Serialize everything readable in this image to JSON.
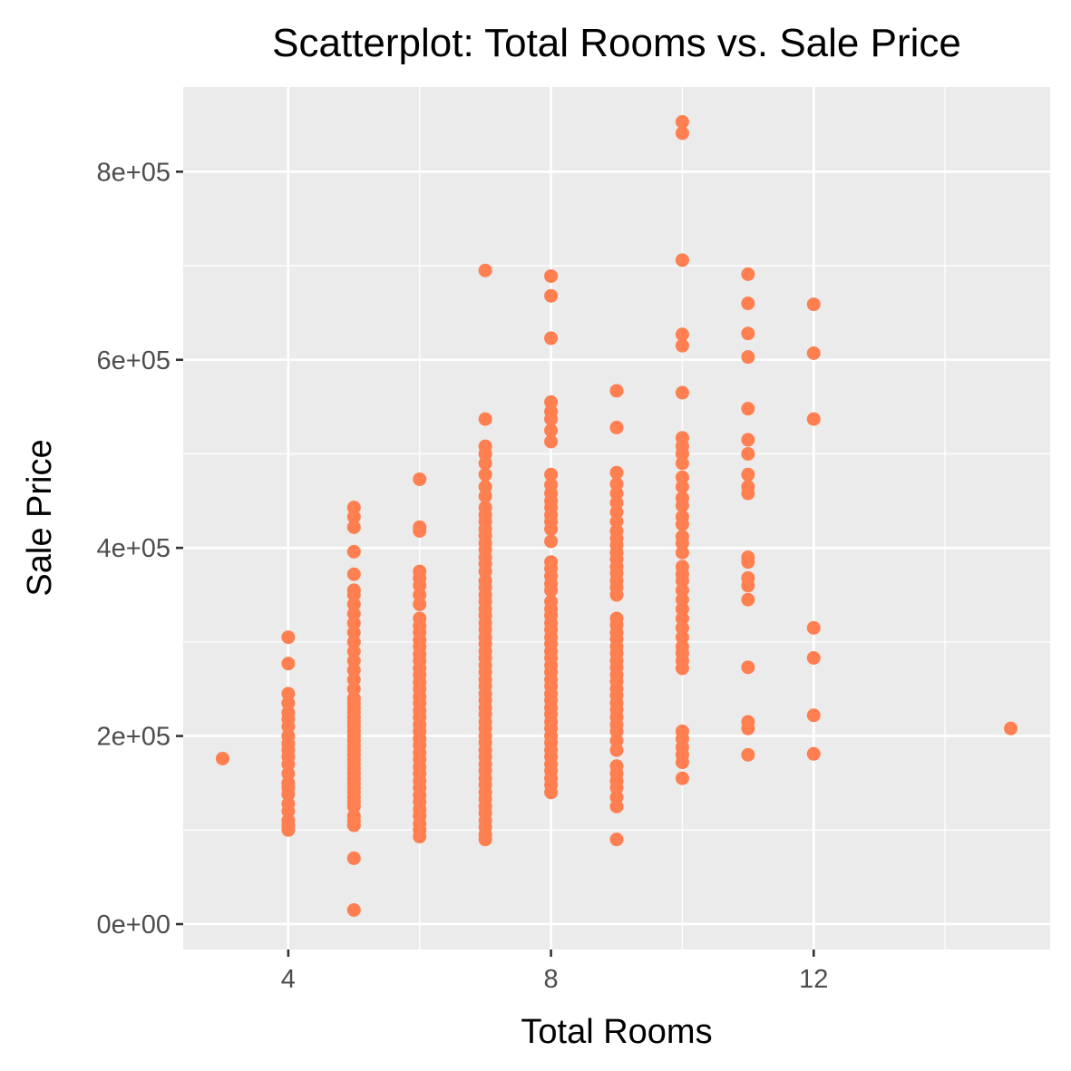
{
  "chart_data": {
    "type": "scatter",
    "title": "Scatterplot: Total Rooms vs. Sale Price",
    "xlabel": "Total Rooms",
    "ylabel": "Sale Price",
    "xlim": [
      2.4,
      15.6
    ],
    "ylim": [
      -27000,
      890000
    ],
    "x_ticks": [
      4,
      8,
      12
    ],
    "x_tick_labels": [
      "4",
      "8",
      "12"
    ],
    "y_ticks": [
      0,
      200000,
      400000,
      600000,
      800000
    ],
    "y_tick_labels": [
      "0e+00",
      "2e+05",
      "4e+05",
      "6e+05",
      "8e+05"
    ],
    "grid": true,
    "panel_background": "#ebebeb",
    "point_color": "#ff7f50",
    "series": [
      {
        "points": [
          [
            3,
            176000
          ],
          [
            4,
            100000
          ],
          [
            4,
            105000
          ],
          [
            4,
            110000
          ],
          [
            4,
            120000
          ],
          [
            4,
            128000
          ],
          [
            4,
            138000
          ],
          [
            4,
            145000
          ],
          [
            4,
            150000
          ],
          [
            4,
            160000
          ],
          [
            4,
            170000
          ],
          [
            4,
            178000
          ],
          [
            4,
            185000
          ],
          [
            4,
            192000
          ],
          [
            4,
            200000
          ],
          [
            4,
            210000
          ],
          [
            4,
            218000
          ],
          [
            4,
            225000
          ],
          [
            4,
            235000
          ],
          [
            4,
            245000
          ],
          [
            4,
            277000
          ],
          [
            4,
            305000
          ],
          [
            5,
            15000
          ],
          [
            5,
            70000
          ],
          [
            5,
            105000
          ],
          [
            5,
            110000
          ],
          [
            5,
            115000
          ],
          [
            5,
            125000
          ],
          [
            5,
            130000
          ],
          [
            5,
            135000
          ],
          [
            5,
            140000
          ],
          [
            5,
            145000
          ],
          [
            5,
            150000
          ],
          [
            5,
            155000
          ],
          [
            5,
            160000
          ],
          [
            5,
            165000
          ],
          [
            5,
            170000
          ],
          [
            5,
            175000
          ],
          [
            5,
            180000
          ],
          [
            5,
            185000
          ],
          [
            5,
            190000
          ],
          [
            5,
            195000
          ],
          [
            5,
            200000
          ],
          [
            5,
            205000
          ],
          [
            5,
            210000
          ],
          [
            5,
            215000
          ],
          [
            5,
            220000
          ],
          [
            5,
            225000
          ],
          [
            5,
            230000
          ],
          [
            5,
            235000
          ],
          [
            5,
            240000
          ],
          [
            5,
            250000
          ],
          [
            5,
            260000
          ],
          [
            5,
            270000
          ],
          [
            5,
            280000
          ],
          [
            5,
            290000
          ],
          [
            5,
            300000
          ],
          [
            5,
            310000
          ],
          [
            5,
            320000
          ],
          [
            5,
            330000
          ],
          [
            5,
            340000
          ],
          [
            5,
            350000
          ],
          [
            5,
            355000
          ],
          [
            5,
            372000
          ],
          [
            5,
            396000
          ],
          [
            5,
            422000
          ],
          [
            5,
            433000
          ],
          [
            5,
            443000
          ],
          [
            6,
            93000
          ],
          [
            6,
            100000
          ],
          [
            6,
            107000
          ],
          [
            6,
            115000
          ],
          [
            6,
            122000
          ],
          [
            6,
            130000
          ],
          [
            6,
            137000
          ],
          [
            6,
            145000
          ],
          [
            6,
            152000
          ],
          [
            6,
            160000
          ],
          [
            6,
            167000
          ],
          [
            6,
            175000
          ],
          [
            6,
            182000
          ],
          [
            6,
            190000
          ],
          [
            6,
            197000
          ],
          [
            6,
            205000
          ],
          [
            6,
            212000
          ],
          [
            6,
            220000
          ],
          [
            6,
            227000
          ],
          [
            6,
            235000
          ],
          [
            6,
            242000
          ],
          [
            6,
            250000
          ],
          [
            6,
            257000
          ],
          [
            6,
            265000
          ],
          [
            6,
            272000
          ],
          [
            6,
            280000
          ],
          [
            6,
            287000
          ],
          [
            6,
            295000
          ],
          [
            6,
            302000
          ],
          [
            6,
            310000
          ],
          [
            6,
            317000
          ],
          [
            6,
            325000
          ],
          [
            6,
            340000
          ],
          [
            6,
            350000
          ],
          [
            6,
            360000
          ],
          [
            6,
            368000
          ],
          [
            6,
            375000
          ],
          [
            6,
            418000
          ],
          [
            6,
            422000
          ],
          [
            6,
            473000
          ],
          [
            7,
            90000
          ],
          [
            7,
            95000
          ],
          [
            7,
            103000
          ],
          [
            7,
            110000
          ],
          [
            7,
            118000
          ],
          [
            7,
            125000
          ],
          [
            7,
            133000
          ],
          [
            7,
            140000
          ],
          [
            7,
            148000
          ],
          [
            7,
            155000
          ],
          [
            7,
            163000
          ],
          [
            7,
            170000
          ],
          [
            7,
            178000
          ],
          [
            7,
            185000
          ],
          [
            7,
            193000
          ],
          [
            7,
            200000
          ],
          [
            7,
            208000
          ],
          [
            7,
            215000
          ],
          [
            7,
            223000
          ],
          [
            7,
            230000
          ],
          [
            7,
            238000
          ],
          [
            7,
            245000
          ],
          [
            7,
            253000
          ],
          [
            7,
            260000
          ],
          [
            7,
            268000
          ],
          [
            7,
            275000
          ],
          [
            7,
            283000
          ],
          [
            7,
            290000
          ],
          [
            7,
            298000
          ],
          [
            7,
            305000
          ],
          [
            7,
            313000
          ],
          [
            7,
            320000
          ],
          [
            7,
            328000
          ],
          [
            7,
            335000
          ],
          [
            7,
            343000
          ],
          [
            7,
            350000
          ],
          [
            7,
            358000
          ],
          [
            7,
            365000
          ],
          [
            7,
            375000
          ],
          [
            7,
            383000
          ],
          [
            7,
            390000
          ],
          [
            7,
            398000
          ],
          [
            7,
            405000
          ],
          [
            7,
            413000
          ],
          [
            7,
            420000
          ],
          [
            7,
            428000
          ],
          [
            7,
            435000
          ],
          [
            7,
            443000
          ],
          [
            7,
            455000
          ],
          [
            7,
            465000
          ],
          [
            7,
            478000
          ],
          [
            7,
            490000
          ],
          [
            7,
            500000
          ],
          [
            7,
            508000
          ],
          [
            7,
            537000
          ],
          [
            7,
            695000
          ],
          [
            8,
            140000
          ],
          [
            8,
            148000
          ],
          [
            8,
            155000
          ],
          [
            8,
            163000
          ],
          [
            8,
            170000
          ],
          [
            8,
            178000
          ],
          [
            8,
            185000
          ],
          [
            8,
            193000
          ],
          [
            8,
            200000
          ],
          [
            8,
            208000
          ],
          [
            8,
            215000
          ],
          [
            8,
            223000
          ],
          [
            8,
            230000
          ],
          [
            8,
            238000
          ],
          [
            8,
            245000
          ],
          [
            8,
            253000
          ],
          [
            8,
            260000
          ],
          [
            8,
            268000
          ],
          [
            8,
            275000
          ],
          [
            8,
            283000
          ],
          [
            8,
            290000
          ],
          [
            8,
            298000
          ],
          [
            8,
            305000
          ],
          [
            8,
            313000
          ],
          [
            8,
            320000
          ],
          [
            8,
            328000
          ],
          [
            8,
            335000
          ],
          [
            8,
            343000
          ],
          [
            8,
            355000
          ],
          [
            8,
            362000
          ],
          [
            8,
            370000
          ],
          [
            8,
            378000
          ],
          [
            8,
            385000
          ],
          [
            8,
            407000
          ],
          [
            8,
            420000
          ],
          [
            8,
            428000
          ],
          [
            8,
            435000
          ],
          [
            8,
            443000
          ],
          [
            8,
            450000
          ],
          [
            8,
            458000
          ],
          [
            8,
            467000
          ],
          [
            8,
            478000
          ],
          [
            8,
            513000
          ],
          [
            8,
            525000
          ],
          [
            8,
            537000
          ],
          [
            8,
            545000
          ],
          [
            8,
            555000
          ],
          [
            8,
            623000
          ],
          [
            8,
            668000
          ],
          [
            8,
            689000
          ],
          [
            9,
            90000
          ],
          [
            9,
            125000
          ],
          [
            9,
            135000
          ],
          [
            9,
            145000
          ],
          [
            9,
            152000
          ],
          [
            9,
            160000
          ],
          [
            9,
            168000
          ],
          [
            9,
            185000
          ],
          [
            9,
            195000
          ],
          [
            9,
            205000
          ],
          [
            9,
            212000
          ],
          [
            9,
            220000
          ],
          [
            9,
            228000
          ],
          [
            9,
            235000
          ],
          [
            9,
            243000
          ],
          [
            9,
            250000
          ],
          [
            9,
            258000
          ],
          [
            9,
            265000
          ],
          [
            9,
            273000
          ],
          [
            9,
            280000
          ],
          [
            9,
            288000
          ],
          [
            9,
            295000
          ],
          [
            9,
            303000
          ],
          [
            9,
            310000
          ],
          [
            9,
            318000
          ],
          [
            9,
            325000
          ],
          [
            9,
            350000
          ],
          [
            9,
            358000
          ],
          [
            9,
            365000
          ],
          [
            9,
            373000
          ],
          [
            9,
            380000
          ],
          [
            9,
            388000
          ],
          [
            9,
            395000
          ],
          [
            9,
            403000
          ],
          [
            9,
            410000
          ],
          [
            9,
            418000
          ],
          [
            9,
            428000
          ],
          [
            9,
            438000
          ],
          [
            9,
            448000
          ],
          [
            9,
            458000
          ],
          [
            9,
            468000
          ],
          [
            9,
            480000
          ],
          [
            9,
            528000
          ],
          [
            9,
            567000
          ],
          [
            10,
            155000
          ],
          [
            10,
            172000
          ],
          [
            10,
            180000
          ],
          [
            10,
            188000
          ],
          [
            10,
            197000
          ],
          [
            10,
            205000
          ],
          [
            10,
            272000
          ],
          [
            10,
            280000
          ],
          [
            10,
            288000
          ],
          [
            10,
            295000
          ],
          [
            10,
            305000
          ],
          [
            10,
            315000
          ],
          [
            10,
            325000
          ],
          [
            10,
            335000
          ],
          [
            10,
            345000
          ],
          [
            10,
            355000
          ],
          [
            10,
            365000
          ],
          [
            10,
            372000
          ],
          [
            10,
            380000
          ],
          [
            10,
            395000
          ],
          [
            10,
            405000
          ],
          [
            10,
            412000
          ],
          [
            10,
            425000
          ],
          [
            10,
            433000
          ],
          [
            10,
            445000
          ],
          [
            10,
            453000
          ],
          [
            10,
            465000
          ],
          [
            10,
            475000
          ],
          [
            10,
            490000
          ],
          [
            10,
            500000
          ],
          [
            10,
            508000
          ],
          [
            10,
            517000
          ],
          [
            10,
            565000
          ],
          [
            10,
            615000
          ],
          [
            10,
            627000
          ],
          [
            10,
            706000
          ],
          [
            10,
            841000
          ],
          [
            10,
            853000
          ],
          [
            11,
            180000
          ],
          [
            11,
            208000
          ],
          [
            11,
            215000
          ],
          [
            11,
            273000
          ],
          [
            11,
            345000
          ],
          [
            11,
            360000
          ],
          [
            11,
            368000
          ],
          [
            11,
            385000
          ],
          [
            11,
            390000
          ],
          [
            11,
            458000
          ],
          [
            11,
            465000
          ],
          [
            11,
            478000
          ],
          [
            11,
            500000
          ],
          [
            11,
            515000
          ],
          [
            11,
            548000
          ],
          [
            11,
            603000
          ],
          [
            11,
            628000
          ],
          [
            11,
            660000
          ],
          [
            11,
            691000
          ],
          [
            12,
            181000
          ],
          [
            12,
            222000
          ],
          [
            12,
            283000
          ],
          [
            12,
            315000
          ],
          [
            12,
            537000
          ],
          [
            12,
            607000
          ],
          [
            12,
            659000
          ],
          [
            15,
            208000
          ]
        ]
      }
    ]
  }
}
